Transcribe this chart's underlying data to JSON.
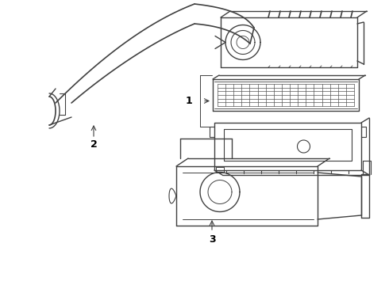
{
  "background_color": "#ffffff",
  "line_color": "#404040",
  "label_color": "#000000",
  "label_1": "1",
  "label_2": "2",
  "label_3": "3",
  "figsize": [
    4.9,
    3.6
  ],
  "dpi": 100
}
